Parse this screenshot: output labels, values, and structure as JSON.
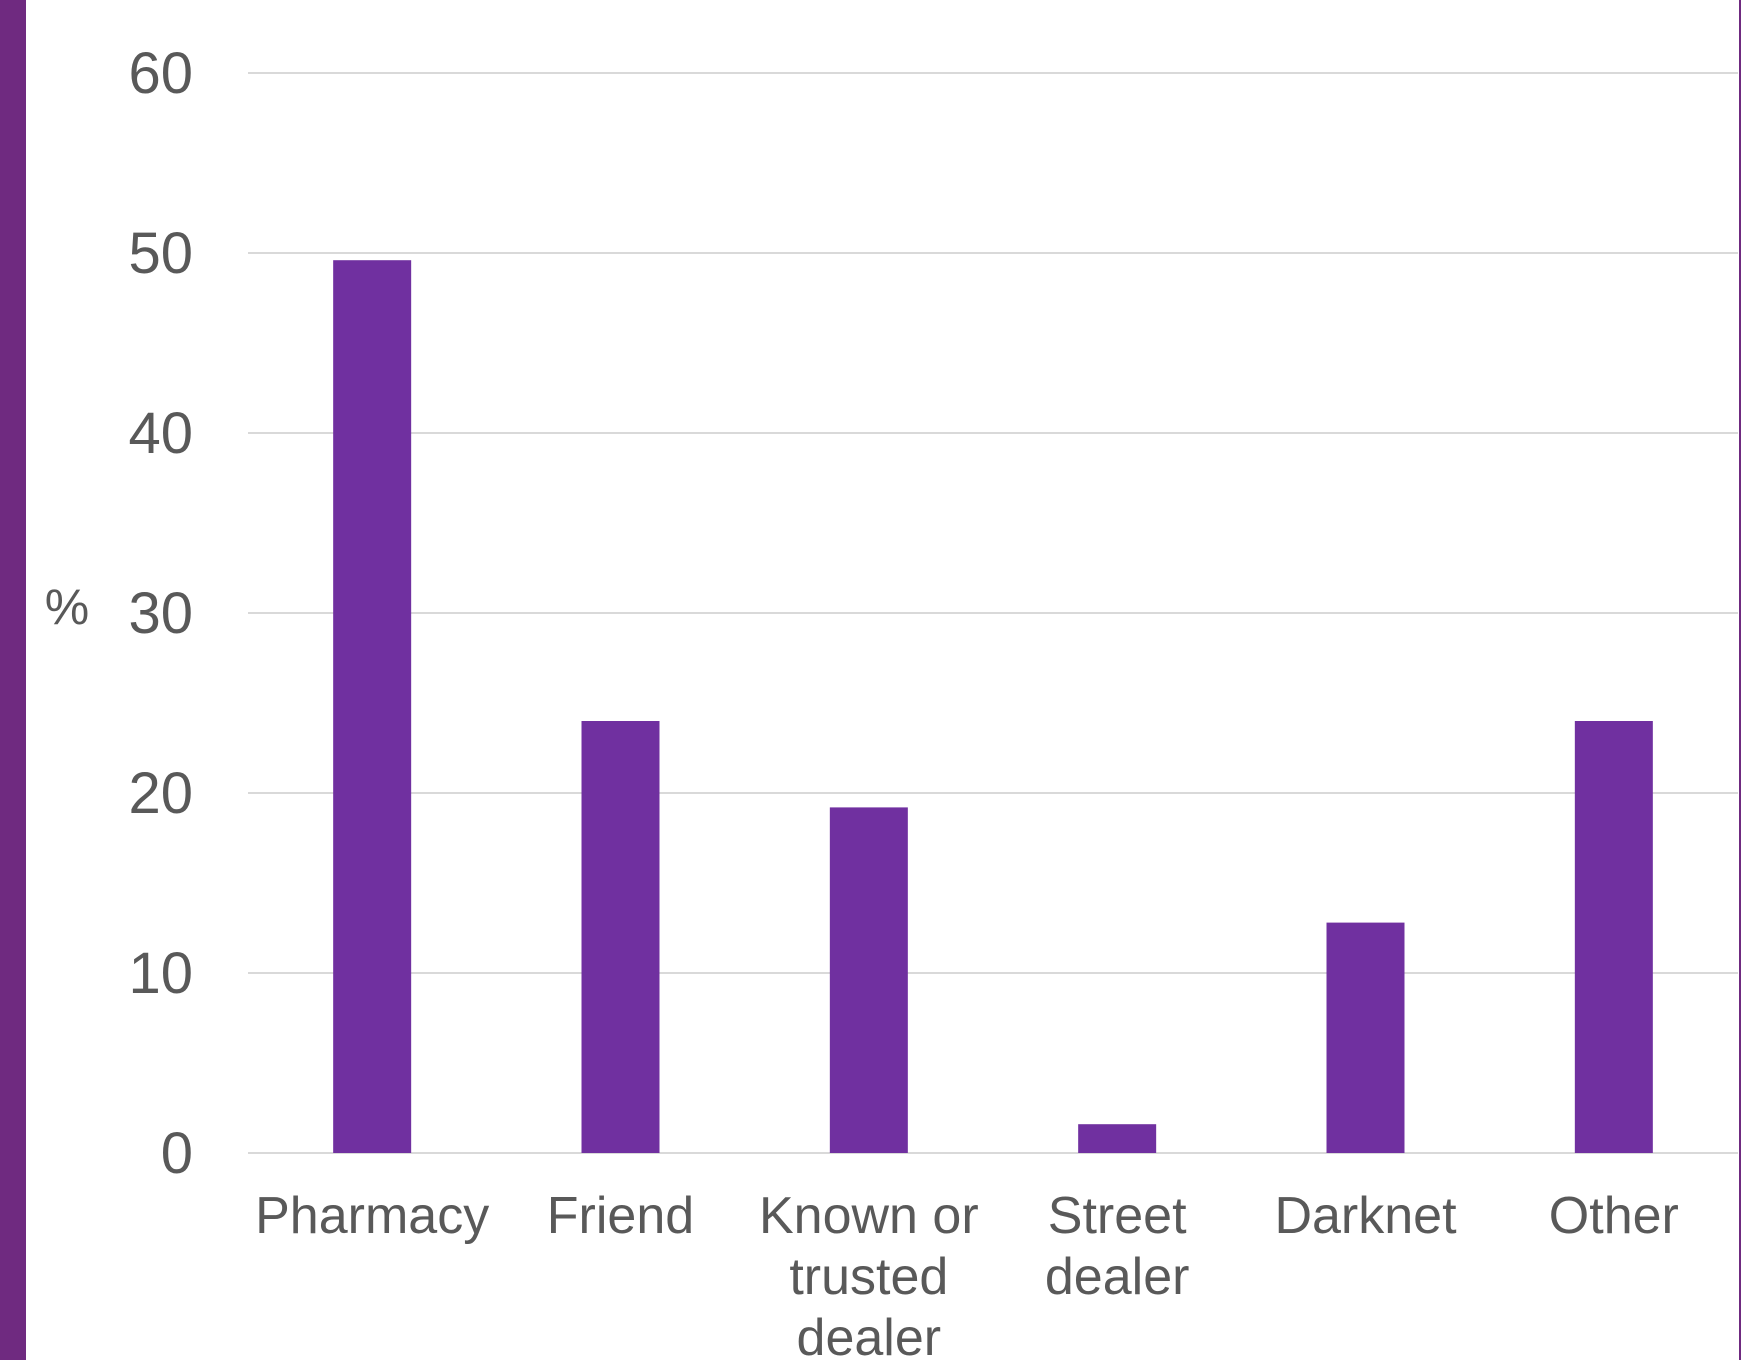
{
  "colors": {
    "accent": "#6f2a80",
    "bar": "#7030a0",
    "grid": "#d9d9d9",
    "text": "#595959"
  },
  "chart_data": {
    "type": "bar",
    "title": "",
    "xlabel": "",
    "ylabel": "%",
    "categories": [
      "Pharmacy",
      "Friend",
      "Known or trusted dealer",
      "Street dealer",
      "Darknet",
      "Other"
    ],
    "category_lines": [
      [
        "Pharmacy"
      ],
      [
        "Friend"
      ],
      [
        "Known or",
        "trusted",
        "dealer"
      ],
      [
        "Street",
        "dealer"
      ],
      [
        "Darknet"
      ],
      [
        "Other"
      ]
    ],
    "values": [
      49.6,
      24.0,
      19.2,
      1.6,
      12.8,
      24.0
    ],
    "ylim": [
      0,
      60
    ],
    "yticks": [
      0,
      10,
      20,
      30,
      40,
      50,
      60
    ],
    "grid": true,
    "legend": "none"
  }
}
